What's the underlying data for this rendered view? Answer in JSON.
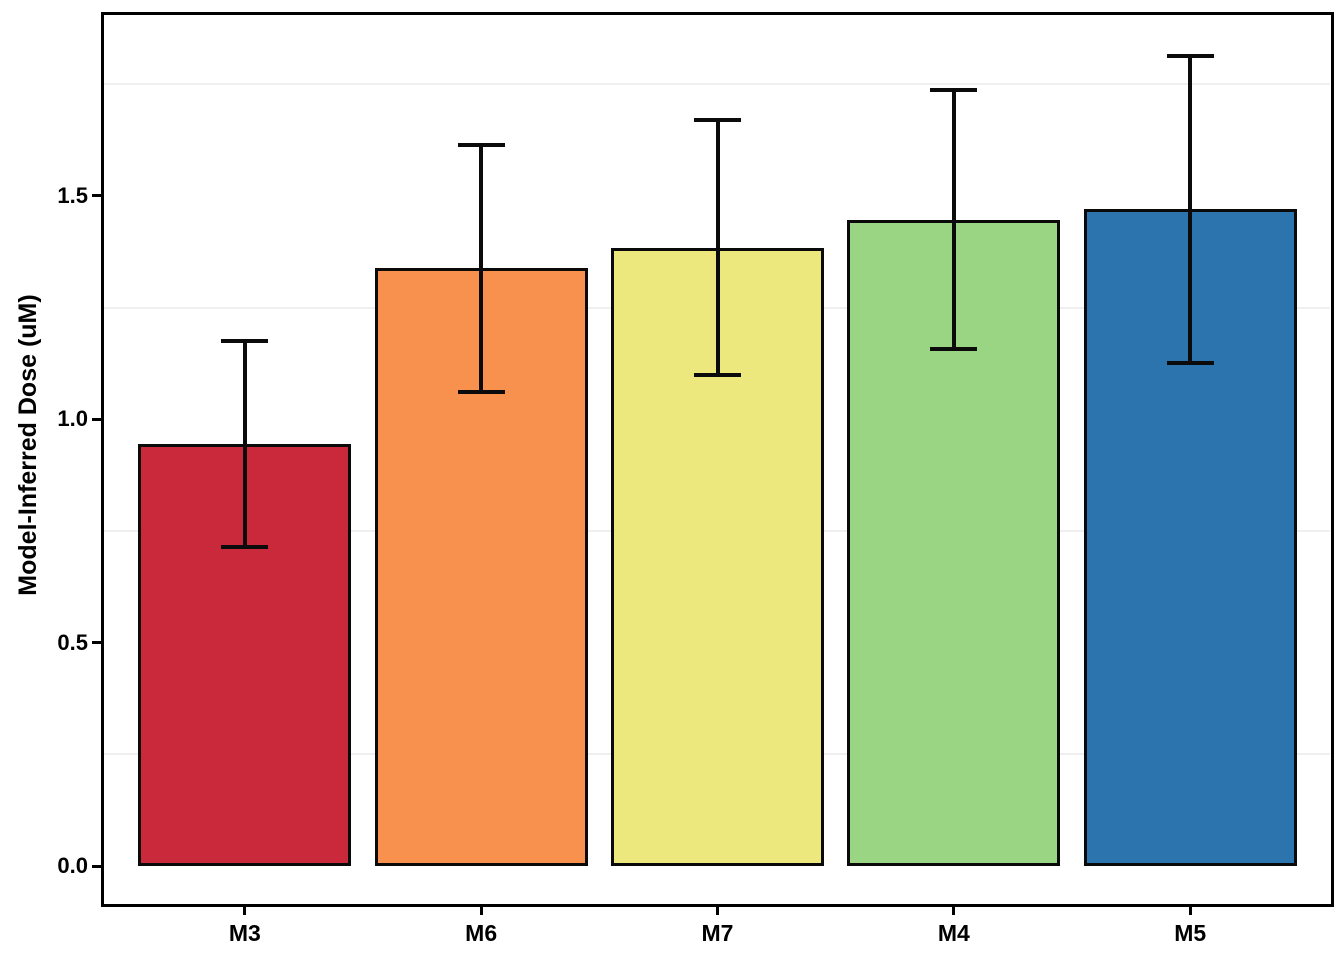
{
  "chart_data": {
    "type": "bar",
    "title": "",
    "xlabel": "",
    "ylabel": "Model-Inferred Dose (uM)",
    "categories": [
      "M3",
      "M6",
      "M7",
      "M4",
      "M5"
    ],
    "values": [
      0.945,
      1.338,
      1.383,
      1.447,
      1.47
    ],
    "error_low": [
      0.714,
      1.06,
      1.098,
      1.157,
      1.125
    ],
    "error_high": [
      1.175,
      1.613,
      1.669,
      1.738,
      1.814
    ],
    "bar_colors": [
      "#C9293B",
      "#F9914E",
      "#EDE87D",
      "#9AD583",
      "#2C74AE"
    ],
    "ylim": [
      -0.087,
      1.907
    ],
    "yticks": [
      0.0,
      0.5,
      1.0,
      1.5
    ],
    "ytick_labels": [
      "0.0",
      "0.5",
      "1.0",
      "1.5"
    ],
    "minor_gridlines": [
      0.25,
      0.75,
      1.25,
      1.75
    ],
    "grid": "minor-only",
    "legend": "none",
    "axis_color": "#000000",
    "gridline_color": "#efefef",
    "bar_outline_color": "#0a0a0a",
    "errorbar_color": "#0b0b0b",
    "background_color": "#ffffff"
  }
}
